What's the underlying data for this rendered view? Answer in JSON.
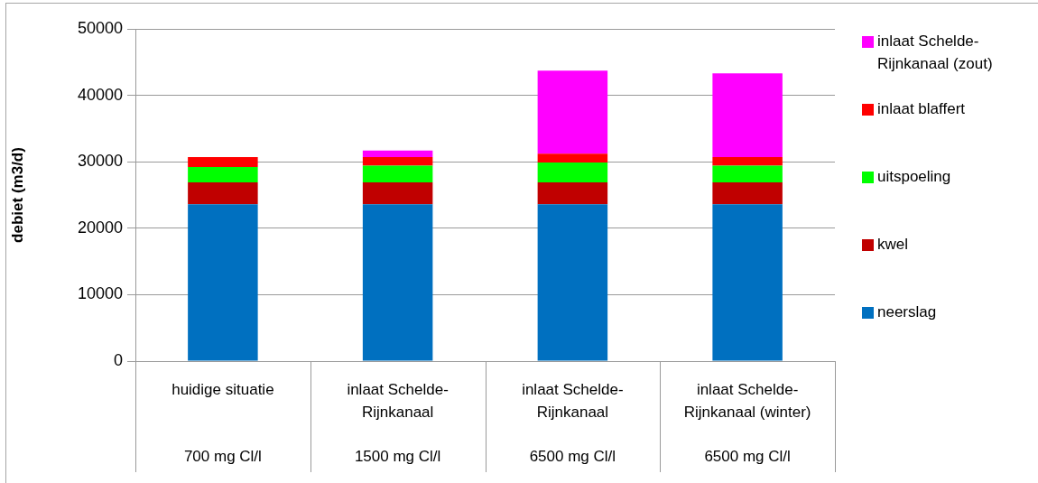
{
  "chart_data": {
    "type": "bar",
    "stacked": true,
    "ylabel": "debiet (m3/d)",
    "categories": [
      "huidige situatie\n700 mg Cl/l",
      "inlaat Schelde-Rijnkanaal\n1500 mg Cl/l",
      "inlaat Schelde-Rijnkanaal\n6500 mg Cl/l",
      "inlaat Schelde-Rijnkanaal (winter)\n6500 mg Cl/l"
    ],
    "series": [
      {
        "name": "neerslag",
        "color": "#0070c0",
        "values": [
          23600,
          23600,
          23600,
          23600
        ]
      },
      {
        "name": "kwel",
        "color": "#c00000",
        "values": [
          3300,
          3300,
          3300,
          3300
        ]
      },
      {
        "name": "uitspoeling",
        "color": "#00ff00",
        "values": [
          2300,
          2500,
          3000,
          2500
        ]
      },
      {
        "name": "inlaat blaffert",
        "color": "#ff0000",
        "values": [
          1500,
          1300,
          1300,
          1300
        ]
      },
      {
        "name": "inlaat Schelde-Rijnkanaal (zout)",
        "color": "#ff00ff",
        "values": [
          0,
          1000,
          12500,
          12600
        ]
      }
    ],
    "ylim": [
      0,
      50000
    ],
    "yticks": [
      0,
      10000,
      20000,
      30000,
      40000,
      50000
    ],
    "grid": "y",
    "legend": "right"
  }
}
